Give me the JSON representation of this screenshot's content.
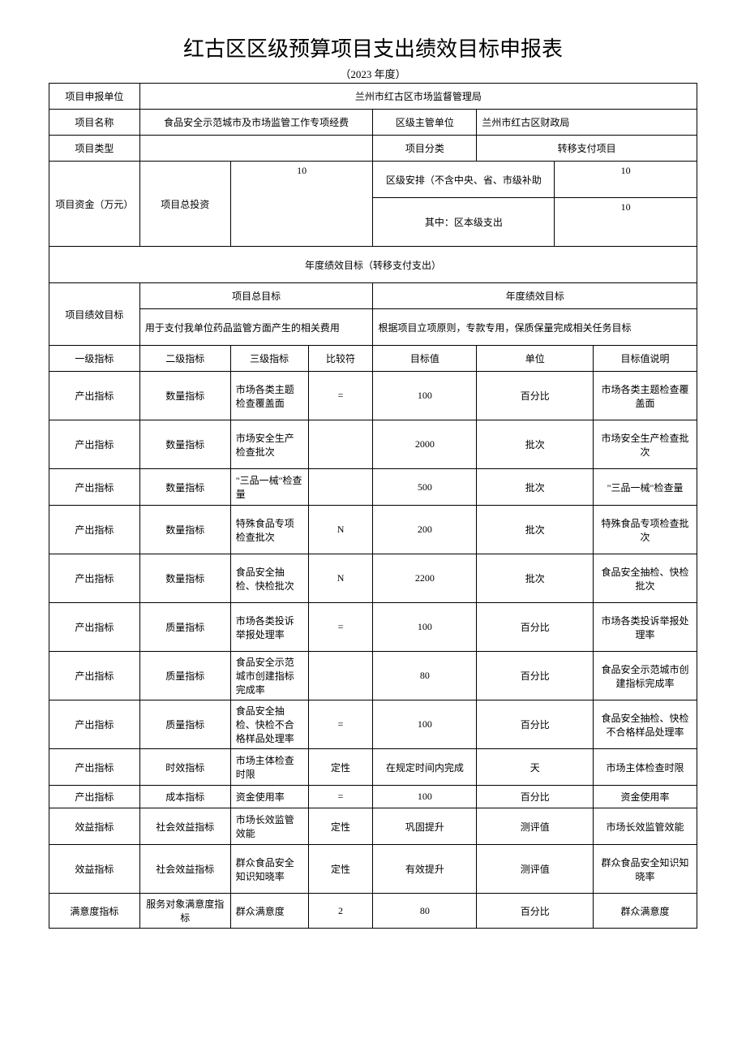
{
  "title": "红古区区级预算项目支出绩效目标申报表",
  "subtitle": "（2023 年度）",
  "labels": {
    "reporting_unit": "项目申报单位",
    "project_name": "项目名称",
    "project_type": "项目类型",
    "district_dept": "区级主管单位",
    "project_category": "项目分类",
    "project_funds": "项目资金（万元）",
    "total_investment": "项目总投资",
    "district_arrange": "区级安排（不含中央、省、市级补助",
    "district_expenditure": "其中：区本级支出",
    "annual_section": "年度绩效目标（转移支付支出）",
    "performance_target": "项目绩效目标",
    "overall_target": "项目总目标",
    "annual_target": "年度绩效目标",
    "level1": "一级指标",
    "level2": "二级指标",
    "level3": "三级指标",
    "comparator": "比较符",
    "target_value": "目标值",
    "unit": "单位",
    "target_desc": "目标值说明"
  },
  "header": {
    "reporting_unit": "兰州市红古区市场监督管理局",
    "project_name": "食品安全示范城市及市场监管工作专项经费",
    "district_dept": "兰州市红古区财政局",
    "project_type": "",
    "project_category": "转移支付项目"
  },
  "funds": {
    "total_investment": "10",
    "district_arrange": "10",
    "district_expenditure": "10"
  },
  "targets": {
    "overall": "用于支付我单位药品监管方面产生的相关费用",
    "annual": "根据项目立项原则，专款专用，保质保量完成相关任务目标"
  },
  "rows": [
    {
      "l1": "产出指标",
      "l2": "数量指标",
      "l3": "市场各类主题检查覆盖面",
      "cmp": "=",
      "val": "100",
      "unit": "百分比",
      "desc": "市场各类主题检查覆盖面"
    },
    {
      "l1": "产出指标",
      "l2": "数量指标",
      "l3": "市场安全生产检查批次",
      "cmp": "",
      "val": "2000",
      "unit": "批次",
      "desc": "市场安全生产检查批次"
    },
    {
      "l1": "产出指标",
      "l2": "数量指标",
      "l3": "\"三品一械\"检查量",
      "cmp": "",
      "val": "500",
      "unit": "批次",
      "desc": "\"三品一械\"检查量"
    },
    {
      "l1": "产出指标",
      "l2": "数量指标",
      "l3": "特殊食品专项检查批次",
      "cmp": "N",
      "val": "200",
      "unit": "批次",
      "desc": "特殊食品专项检查批次"
    },
    {
      "l1": "产出指标",
      "l2": "数量指标",
      "l3": "食品安全抽检、快检批次",
      "cmp": "N",
      "val": "2200",
      "unit": "批次",
      "desc": "食品安全抽检、快检批次"
    },
    {
      "l1": "产出指标",
      "l2": "质量指标",
      "l3": "市场各类投诉举报处理率",
      "cmp": "=",
      "val": "100",
      "unit": "百分比",
      "desc": "市场各类投诉举报处理率"
    },
    {
      "l1": "产出指标",
      "l2": "质量指标",
      "l3": "食品安全示范城市创建指标完成率",
      "cmp": "",
      "val": "80",
      "unit": "百分比",
      "desc": "食品安全示范城市创建指标完成率"
    },
    {
      "l1": "产出指标",
      "l2": "质量指标",
      "l3": "食品安全抽检、快检不合格样品处理率",
      "cmp": "=",
      "val": "100",
      "unit": "百分比",
      "desc": "食品安全抽检、快检不合格样品处理率"
    },
    {
      "l1": "产出指标",
      "l2": "时效指标",
      "l3": "市场主体检查时限",
      "cmp": "定性",
      "val": "在规定时间内完成",
      "unit": "天",
      "desc": "市场主体检查时限"
    },
    {
      "l1": "产出指标",
      "l2": "成本指标",
      "l3": "资金使用率",
      "cmp": "=",
      "val": "100",
      "unit": "百分比",
      "desc": "资金使用率"
    },
    {
      "l1": "效益指标",
      "l2": "社会效益指标",
      "l3": "市场长效监管效能",
      "cmp": "定性",
      "val": "巩固提升",
      "unit": "测评值",
      "desc": "市场长效监管效能"
    },
    {
      "l1": "效益指标",
      "l2": "社会效益指标",
      "l3": "群众食品安全知识知晓率",
      "cmp": "定性",
      "val": "有效提升",
      "unit": "测评值",
      "desc": "群众食品安全知识知晓率"
    },
    {
      "l1": "满意度指标",
      "l2": "服务对象满意度指标",
      "l3": "群众满意度",
      "cmp": "2",
      "val": "80",
      "unit": "百分比",
      "desc": "群众满意度"
    }
  ],
  "style": {
    "title_color": "#000000",
    "border_color": "#000000",
    "bg_color": "#ffffff"
  }
}
